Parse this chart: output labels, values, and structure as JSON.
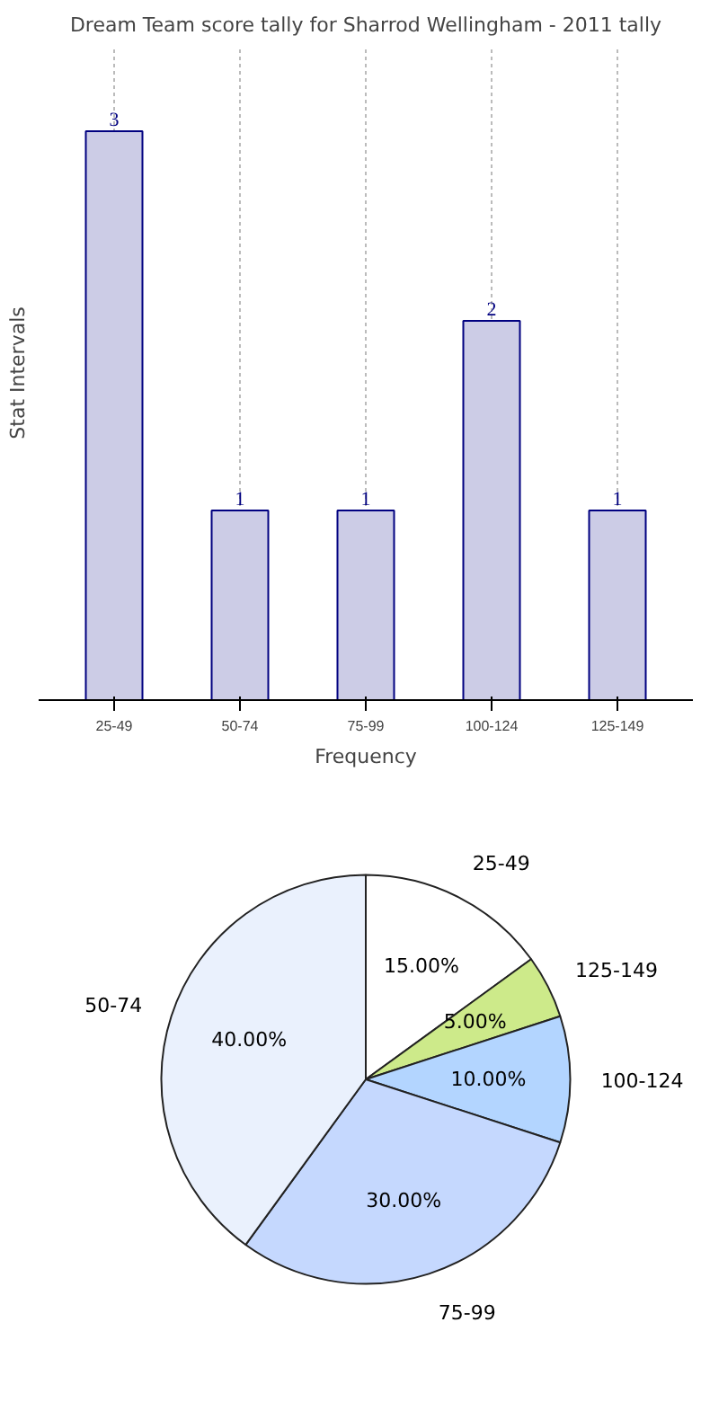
{
  "chart_data": [
    {
      "type": "bar",
      "title": "Dream Team score tally for Sharrod Wellingham - 2011 tally",
      "xlabel": "Frequency",
      "ylabel": "Stat Intervals",
      "categories": [
        "25-49",
        "50-74",
        "75-99",
        "100-124",
        "125-149"
      ],
      "values": [
        3,
        1,
        1,
        2,
        1
      ],
      "color": "#cccce6",
      "data_labels": true,
      "grid": "x"
    },
    {
      "type": "pie",
      "categories": [
        "25-49",
        "125-149",
        "100-124",
        "75-99",
        "50-74"
      ],
      "values": [
        15,
        5,
        10,
        30,
        40
      ],
      "value_labels": [
        "15.00%",
        "5.00%",
        "10.00%",
        "30.00%",
        "40.00%"
      ],
      "colors": [
        "#ffffff",
        "#cdea8a",
        "#b3d5ff",
        "#c5d8fe",
        "#eaf1fd"
      ]
    }
  ]
}
